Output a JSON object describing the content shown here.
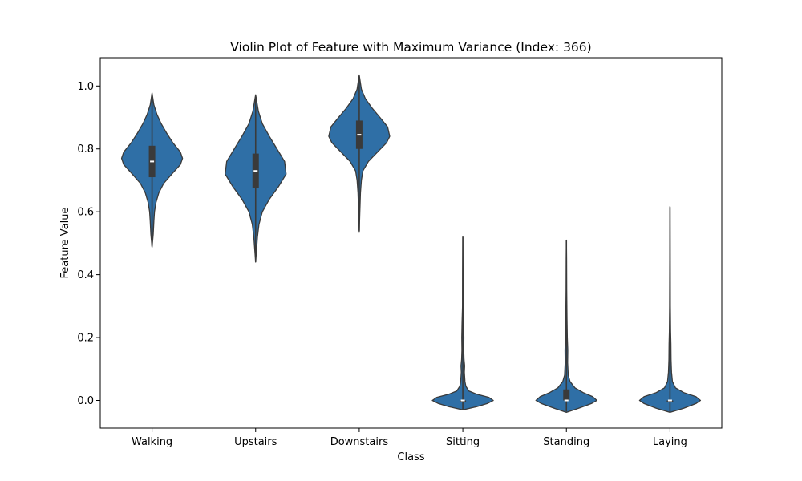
{
  "chart_data": {
    "type": "violin",
    "title": "Violin Plot of Feature with Maximum Variance (Index: 366)",
    "xlabel": "Class",
    "ylabel": "Feature Value",
    "ylim": [
      -0.088,
      1.09
    ],
    "yticks": [
      0.0,
      0.2,
      0.4,
      0.6,
      0.8,
      1.0
    ],
    "ytick_labels": [
      "0.0",
      "0.2",
      "0.4",
      "0.6",
      "0.8",
      "1.0"
    ],
    "grid": false,
    "legend": "none",
    "color": "#2f6fa6",
    "edge_color": "#3a3a3a",
    "categories": [
      "Walking",
      "Upstairs",
      "Downstairs",
      "Sitting",
      "Standing",
      "Laying"
    ],
    "series": [
      {
        "category": "Walking",
        "whisker": [
          0.49,
          0.975
        ],
        "iqr": [
          0.71,
          0.81
        ],
        "median": 0.76,
        "profile": [
          [
            0.487,
            0.0
          ],
          [
            0.53,
            0.04
          ],
          [
            0.57,
            0.06
          ],
          [
            0.6,
            0.08
          ],
          [
            0.63,
            0.13
          ],
          [
            0.66,
            0.22
          ],
          [
            0.69,
            0.38
          ],
          [
            0.72,
            0.65
          ],
          [
            0.75,
            0.93
          ],
          [
            0.77,
            1.0
          ],
          [
            0.79,
            0.93
          ],
          [
            0.82,
            0.68
          ],
          [
            0.85,
            0.48
          ],
          [
            0.88,
            0.3
          ],
          [
            0.91,
            0.16
          ],
          [
            0.94,
            0.06
          ],
          [
            0.978,
            0.0
          ]
        ]
      },
      {
        "category": "Upstairs",
        "whisker": [
          0.44,
          0.965
        ],
        "iqr": [
          0.675,
          0.785
        ],
        "median": 0.73,
        "profile": [
          [
            0.44,
            0.0
          ],
          [
            0.48,
            0.03
          ],
          [
            0.52,
            0.06
          ],
          [
            0.56,
            0.11
          ],
          [
            0.6,
            0.22
          ],
          [
            0.64,
            0.45
          ],
          [
            0.68,
            0.75
          ],
          [
            0.72,
            1.0
          ],
          [
            0.76,
            0.95
          ],
          [
            0.8,
            0.7
          ],
          [
            0.84,
            0.45
          ],
          [
            0.88,
            0.22
          ],
          [
            0.92,
            0.09
          ],
          [
            0.972,
            0.0
          ]
        ]
      },
      {
        "category": "Downstairs",
        "whisker": [
          0.54,
          1.03
        ],
        "iqr": [
          0.8,
          0.89
        ],
        "median": 0.845,
        "profile": [
          [
            0.535,
            0.0
          ],
          [
            0.6,
            0.02
          ],
          [
            0.66,
            0.04
          ],
          [
            0.7,
            0.07
          ],
          [
            0.73,
            0.12
          ],
          [
            0.76,
            0.3
          ],
          [
            0.79,
            0.6
          ],
          [
            0.82,
            0.9
          ],
          [
            0.84,
            1.0
          ],
          [
            0.87,
            0.93
          ],
          [
            0.9,
            0.68
          ],
          [
            0.93,
            0.42
          ],
          [
            0.96,
            0.2
          ],
          [
            0.99,
            0.07
          ],
          [
            1.035,
            0.0
          ]
        ]
      },
      {
        "category": "Sitting",
        "whisker": [
          -0.03,
          0.52
        ],
        "iqr": [
          0.0,
          0.0
        ],
        "median": 0.0,
        "profile": [
          [
            -0.03,
            0.0
          ],
          [
            -0.02,
            0.45
          ],
          [
            -0.01,
            0.8
          ],
          [
            0.0,
            1.0
          ],
          [
            0.01,
            0.85
          ],
          [
            0.02,
            0.45
          ],
          [
            0.03,
            0.2
          ],
          [
            0.045,
            0.1
          ],
          [
            0.06,
            0.07
          ],
          [
            0.09,
            0.05
          ],
          [
            0.11,
            0.06
          ],
          [
            0.13,
            0.04
          ],
          [
            0.16,
            0.03
          ],
          [
            0.2,
            0.035
          ],
          [
            0.25,
            0.025
          ],
          [
            0.3,
            0.01
          ],
          [
            0.4,
            0.008
          ],
          [
            0.52,
            0.0
          ]
        ]
      },
      {
        "category": "Standing",
        "whisker": [
          -0.035,
          0.51
        ],
        "iqr": [
          0.0,
          0.035
        ],
        "median": 0.0,
        "profile": [
          [
            -0.038,
            0.0
          ],
          [
            -0.025,
            0.4
          ],
          [
            -0.01,
            0.82
          ],
          [
            0.0,
            1.0
          ],
          [
            0.012,
            0.86
          ],
          [
            0.025,
            0.55
          ],
          [
            0.04,
            0.28
          ],
          [
            0.06,
            0.12
          ],
          [
            0.08,
            0.06
          ],
          [
            0.12,
            0.04
          ],
          [
            0.16,
            0.045
          ],
          [
            0.2,
            0.03
          ],
          [
            0.26,
            0.02
          ],
          [
            0.35,
            0.01
          ],
          [
            0.45,
            0.006
          ],
          [
            0.51,
            0.0
          ]
        ]
      },
      {
        "category": "Laying",
        "whisker": [
          -0.035,
          0.615
        ],
        "iqr": [
          0.0,
          0.0
        ],
        "median": 0.0,
        "profile": [
          [
            -0.038,
            0.0
          ],
          [
            -0.025,
            0.45
          ],
          [
            -0.01,
            0.85
          ],
          [
            0.0,
            1.0
          ],
          [
            0.012,
            0.85
          ],
          [
            0.025,
            0.45
          ],
          [
            0.04,
            0.18
          ],
          [
            0.06,
            0.08
          ],
          [
            0.09,
            0.05
          ],
          [
            0.13,
            0.035
          ],
          [
            0.18,
            0.03
          ],
          [
            0.22,
            0.02
          ],
          [
            0.3,
            0.012
          ],
          [
            0.42,
            0.008
          ],
          [
            0.52,
            0.004
          ],
          [
            0.617,
            0.0
          ]
        ]
      }
    ]
  }
}
